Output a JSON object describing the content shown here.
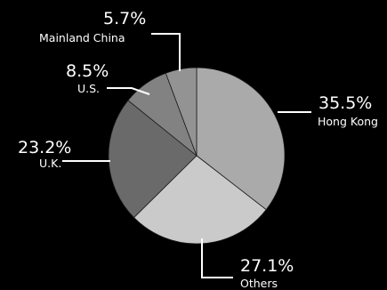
{
  "chart_data": {
    "type": "pie",
    "title": "",
    "start": "top",
    "direction": "clockwise",
    "slices": [
      {
        "label": "Hong Kong",
        "value": 35.5,
        "pct_label": "35.5%",
        "color": "#aaaaaa"
      },
      {
        "label": "Others",
        "value": 27.1,
        "pct_label": "27.1%",
        "color": "#cacaca"
      },
      {
        "label": "U.K.",
        "value": 23.2,
        "pct_label": "23.2%",
        "color": "#6a6a6a"
      },
      {
        "label": "U.S.",
        "value": 8.5,
        "pct_label": "8.5%",
        "color": "#828282"
      },
      {
        "label": "Mainland China",
        "value": 5.7,
        "pct_label": "5.7%",
        "color": "#939393"
      }
    ]
  }
}
